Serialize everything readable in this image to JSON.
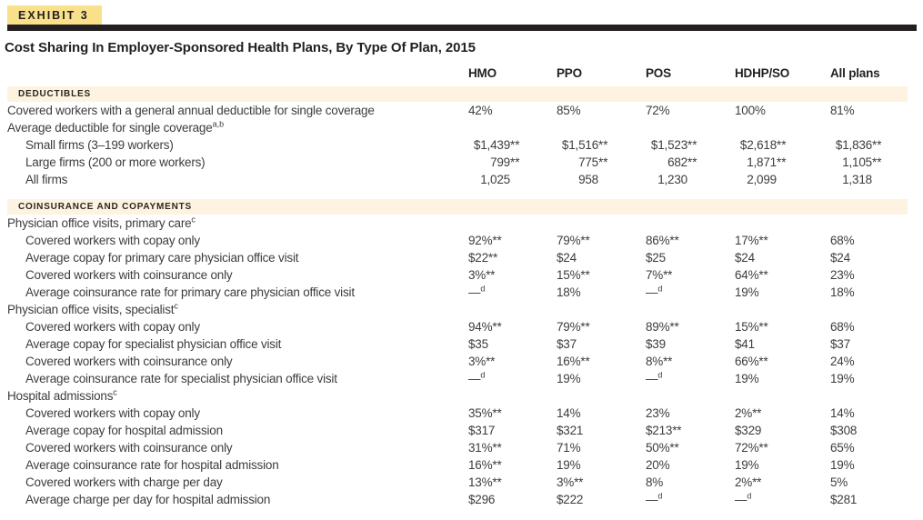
{
  "exhibit": {
    "label": "EXHIBIT 3"
  },
  "title": "Cost Sharing In Employer-Sponsored Health Plans, By Type Of Plan, 2015",
  "colors": {
    "accent_yellow": "#f9e08a",
    "band_cream": "#fdf3e0",
    "rule_black": "#231f20"
  },
  "table": {
    "columns": [
      "HMO",
      "PPO",
      "POS",
      "HDHP/SO",
      "All plans"
    ],
    "sections": [
      {
        "header": "DEDUCTIBLES",
        "rows": [
          {
            "label": "Covered workers with a general annual deductible for single coverage",
            "indent": 0,
            "values": [
              "42%",
              "85%",
              "72%",
              "100%",
              "81%"
            ]
          },
          {
            "label": "Average deductible for single coverage",
            "sup": "a,b",
            "indent": 0,
            "values": []
          },
          {
            "label": "Small firms (3–199 workers)",
            "indent": 1,
            "num_align": "right",
            "values": [
              "$1,439**",
              "$1,516**",
              "$1,523**",
              "$2,618**",
              "$1,836**"
            ]
          },
          {
            "label": "Large firms (200 or more workers)",
            "indent": 1,
            "num_align": "right",
            "values": [
              "799**",
              "775**",
              "682**",
              "1,871**",
              "1,105**"
            ]
          },
          {
            "label": "All firms",
            "indent": 1,
            "num_align": "right",
            "values": [
              "1,025",
              "958",
              "1,230",
              "2,099",
              "1,318"
            ]
          }
        ]
      },
      {
        "header": "COINSURANCE AND COPAYMENTS",
        "rows": [
          {
            "label": "Physician office visits, primary care",
            "sup": "c",
            "indent": 0,
            "values": []
          },
          {
            "label": "Covered workers with copay only",
            "indent": 1,
            "values": [
              "92%**",
              "79%**",
              "86%**",
              "17%**",
              "68%"
            ]
          },
          {
            "label": "Average copay for primary care physician office visit",
            "indent": 1,
            "values": [
              "$22**",
              "$24",
              "$25",
              "$24",
              "$24"
            ]
          },
          {
            "label": "Covered workers with coinsurance only",
            "indent": 1,
            "values": [
              "3%**",
              "15%**",
              "7%**",
              "64%**",
              "23%"
            ]
          },
          {
            "label": "Average coinsurance rate for primary care physician office visit",
            "indent": 1,
            "values": [
              "—^d",
              "18%",
              "—^d",
              "19%",
              "18%"
            ]
          },
          {
            "label": "Physician office visits, specialist",
            "sup": "c",
            "indent": 0,
            "values": []
          },
          {
            "label": "Covered workers with copay only",
            "indent": 1,
            "values": [
              "94%**",
              "79%**",
              "89%**",
              "15%**",
              "68%"
            ]
          },
          {
            "label": "Average copay for specialist physician office visit",
            "indent": 1,
            "values": [
              "$35",
              "$37",
              "$39",
              "$41",
              "$37"
            ]
          },
          {
            "label": "Covered workers with coinsurance only",
            "indent": 1,
            "values": [
              "3%**",
              "16%**",
              "8%**",
              "66%**",
              "24%"
            ]
          },
          {
            "label": "Average coinsurance rate for specialist physician office visit",
            "indent": 1,
            "values": [
              "—^d",
              "19%",
              "—^d",
              "19%",
              "19%"
            ]
          },
          {
            "label": "Hospital admissions",
            "sup": "c",
            "indent": 0,
            "values": []
          },
          {
            "label": "Covered workers with copay only",
            "indent": 1,
            "values": [
              "35%**",
              "14%",
              "23%",
              "2%**",
              "14%"
            ]
          },
          {
            "label": "Average copay for hospital admission",
            "indent": 1,
            "values": [
              "$317",
              "$321",
              "$213**",
              "$329",
              "$308"
            ]
          },
          {
            "label": "Covered workers with coinsurance only",
            "indent": 1,
            "values": [
              "31%**",
              "71%",
              "50%**",
              "72%**",
              "65%"
            ]
          },
          {
            "label": "Average coinsurance rate for hospital admission",
            "indent": 1,
            "values": [
              "16%**",
              "19%",
              "20%",
              "19%",
              "19%"
            ]
          },
          {
            "label": "Covered workers with charge per day",
            "indent": 1,
            "values": [
              "13%**",
              "3%**",
              "8%",
              "2%**",
              "5%"
            ]
          },
          {
            "label": "Average charge per day for hospital admission",
            "indent": 1,
            "values": [
              "$296",
              "$222",
              "—^d",
              "—^d",
              "$281"
            ]
          }
        ]
      }
    ]
  }
}
